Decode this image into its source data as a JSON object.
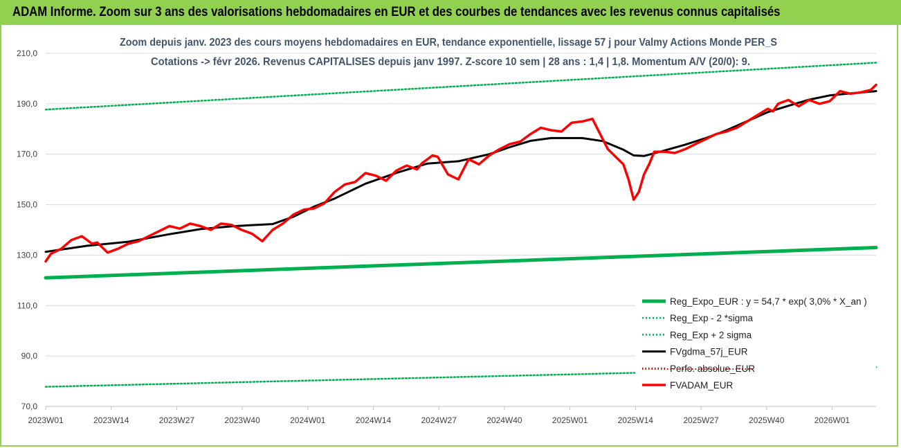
{
  "header": {
    "title": "ADAM Informe. Zoom sur 3 ans des valorisations hebdomadaires en EUR et des courbes de tendances avec les revenus connus capitalisés"
  },
  "chart_data": {
    "type": "line",
    "title_line1": "Zoom depuis janv. 2023 des cours moyens hebdomadaires en EUR, tendance exponentielle, lissage 57 j pour Valmy Actions Monde PER_S",
    "title_line2": "Cotations -> févr 2026. Revenus CAPITALISES depuis janv 1997. Z-score 10 sem | 28 ans : 1,4 | 1,8. Momentum A/V (20/0): 9.",
    "ylim": [
      70,
      210
    ],
    "yticks": [
      "70,0",
      "90,0",
      "110,0",
      "130,0",
      "150,0",
      "170,0",
      "190,0",
      "210,0"
    ],
    "xticks": [
      "2023W01",
      "2023W14",
      "2023W27",
      "2023W40",
      "2024W01",
      "2024W14",
      "2024W27",
      "2024W40",
      "2025W01",
      "2025W14",
      "2025W27",
      "2025W40",
      "2026W01"
    ],
    "x_weeks_range": [
      0,
      161
    ],
    "colors": {
      "reg_expo": "#00b050",
      "sigma": "#00b050",
      "gdma": "#000000",
      "perfo": "#c00000",
      "fvadam": "#ff0000",
      "grid": "#d9d9d9"
    },
    "series": [
      {
        "name": "Reg_Expo_EUR : y = 54,7 * exp( 3,0% *  X_an )",
        "style": "thick",
        "x": [
          0,
          161
        ],
        "values": [
          121.0,
          133.0
        ]
      },
      {
        "name": "Reg_Exp - 2 *sigma",
        "style": "dotted",
        "x": [
          0,
          161
        ],
        "values": [
          77.8,
          85.6
        ]
      },
      {
        "name": "Reg_Exp + 2 sigma",
        "style": "dotted",
        "x": [
          0,
          161
        ],
        "values": [
          187.7,
          206.3
        ]
      },
      {
        "name": "FVgdma_57j_EUR",
        "style": "solid",
        "x": [
          0,
          8,
          16,
          24,
          30,
          36,
          40,
          44,
          48,
          52,
          56,
          62,
          68,
          74,
          80,
          86,
          90,
          94,
          98,
          100,
          104,
          108,
          112,
          114,
          116,
          120,
          124,
          128,
          132,
          136,
          140,
          144,
          148,
          152,
          156,
          161
        ],
        "values": [
          131.3,
          133.7,
          135.3,
          138.3,
          140.3,
          141.4,
          141.9,
          142.3,
          145.2,
          149.2,
          152.4,
          158.3,
          162.6,
          166.3,
          167.2,
          170.0,
          172.8,
          175.3,
          176.4,
          176.4,
          176.4,
          175.2,
          171.8,
          169.5,
          169.3,
          171.5,
          173.8,
          176.4,
          179.5,
          183.1,
          186.7,
          189.2,
          191.6,
          193.3,
          194.1,
          195.0
        ]
      },
      {
        "name": "Perfo. absolue_EUR",
        "style": "dotted",
        "x": [],
        "values": []
      },
      {
        "name": "FVADAM_EUR",
        "style": "thick",
        "x": [
          0,
          1,
          3,
          5,
          7,
          9,
          10,
          12,
          14,
          16,
          18,
          20,
          22,
          24,
          26,
          28,
          30,
          32,
          34,
          36,
          38,
          40,
          42,
          44,
          46,
          48,
          50,
          52,
          54,
          56,
          58,
          60,
          62,
          64,
          66,
          68,
          70,
          72,
          73,
          74,
          75,
          76,
          78,
          80,
          82,
          84,
          86,
          88,
          90,
          92,
          94,
          96,
          98,
          100,
          102,
          104,
          106,
          108,
          109,
          111,
          112,
          113,
          114,
          115,
          116,
          117,
          118,
          120,
          122,
          124,
          126,
          128,
          130,
          132,
          134,
          136,
          138,
          140,
          141,
          142,
          144,
          146,
          148,
          150,
          152,
          154,
          156,
          158,
          160,
          161
        ],
        "values": [
          127.5,
          130.5,
          132.5,
          136.0,
          137.5,
          134.5,
          135.0,
          131.0,
          132.5,
          134.5,
          135.5,
          137.5,
          139.5,
          141.5,
          140.5,
          142.5,
          141.5,
          140.0,
          142.5,
          142.0,
          140.0,
          138.5,
          135.5,
          140.0,
          142.5,
          146.0,
          148.0,
          148.5,
          150.5,
          155.0,
          158.0,
          159.0,
          162.5,
          161.5,
          159.5,
          163.5,
          165.5,
          164.0,
          166.5,
          168.0,
          169.5,
          169.0,
          162.0,
          160.0,
          168.0,
          166.0,
          169.5,
          172.0,
          174.0,
          175.0,
          178.0,
          180.5,
          179.5,
          179.0,
          182.5,
          183.0,
          184.0,
          176.0,
          172.0,
          168.0,
          166.0,
          160.0,
          152.0,
          155.0,
          162.0,
          166.0,
          171.0,
          171.0,
          170.5,
          172.0,
          174.0,
          176.0,
          178.0,
          179.0,
          180.5,
          183.0,
          185.5,
          188.0,
          187.0,
          190.0,
          191.5,
          189.0,
          191.5,
          190.0,
          191.0,
          195.0,
          194.0,
          194.5,
          195.5,
          197.5
        ]
      }
    ]
  }
}
